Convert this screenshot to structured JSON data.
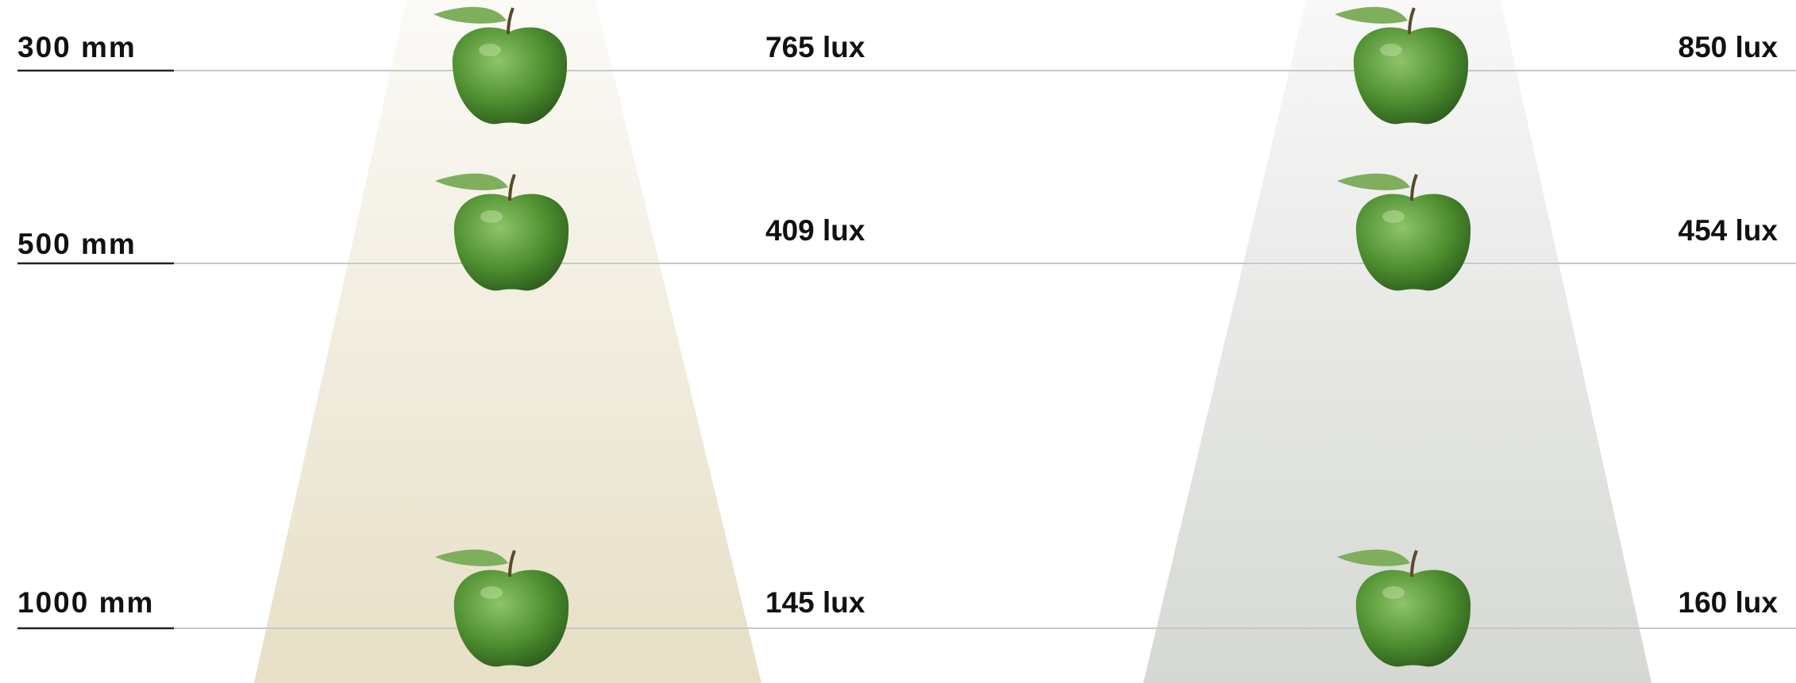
{
  "rows": [
    {
      "distance": "300 mm",
      "warm": "765 lux",
      "cool": "850 lux"
    },
    {
      "distance": "500 mm",
      "warm": "409 lux",
      "cool": "454 lux"
    },
    {
      "distance": "1000 mm",
      "warm": "145 lux",
      "cool": "160 lux"
    }
  ]
}
